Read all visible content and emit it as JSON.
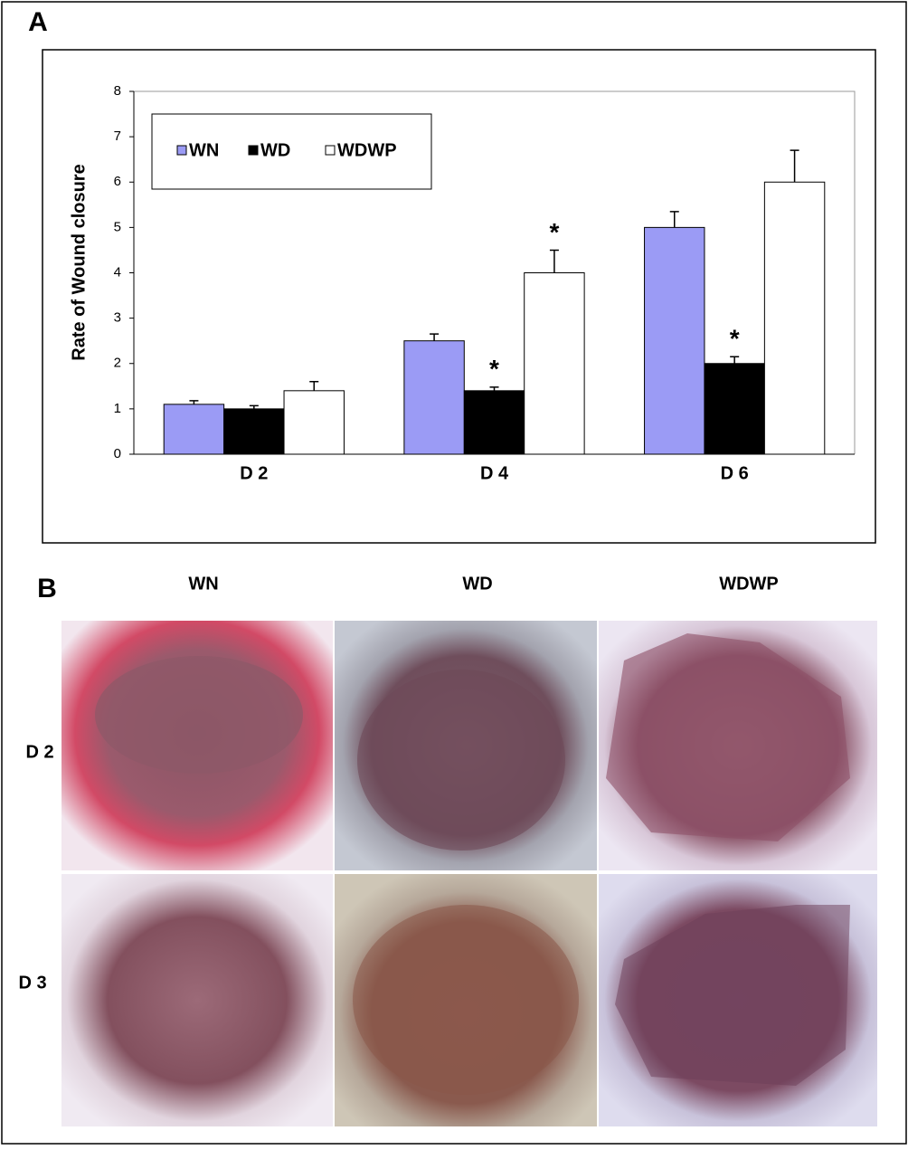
{
  "chart_data": {
    "type": "bar",
    "panel_label": "A",
    "y_label": "Rate of Wound closure",
    "categories": [
      "D 2",
      "D 4",
      "D 6"
    ],
    "series": [
      {
        "name": "WN",
        "color": "#9b9bf5",
        "values": [
          1.1,
          2.5,
          5.0
        ],
        "errors": [
          0.08,
          0.15,
          0.35
        ],
        "labels": [
          null,
          null,
          null
        ]
      },
      {
        "name": "WD",
        "color": "#000000",
        "values": [
          1.0,
          1.4,
          2.0
        ],
        "errors": [
          0.07,
          0.08,
          0.15
        ],
        "labels": [
          null,
          "*",
          "*"
        ]
      },
      {
        "name": "WDWP",
        "color": "#ffffff",
        "values": [
          1.4,
          4.0,
          6.0
        ],
        "errors": [
          0.2,
          0.5,
          0.7
        ],
        "labels": [
          null,
          "*",
          null
        ]
      }
    ],
    "ylim": [
      0,
      8
    ],
    "yticks": [
      0,
      1,
      2,
      3,
      4,
      5,
      6,
      7,
      8
    ],
    "grid": false,
    "legend": "top-left"
  },
  "panel_b": {
    "label": "B",
    "columns": [
      "WN",
      "WD",
      "WDWP"
    ],
    "rows": [
      "D 2",
      "D 3"
    ]
  }
}
